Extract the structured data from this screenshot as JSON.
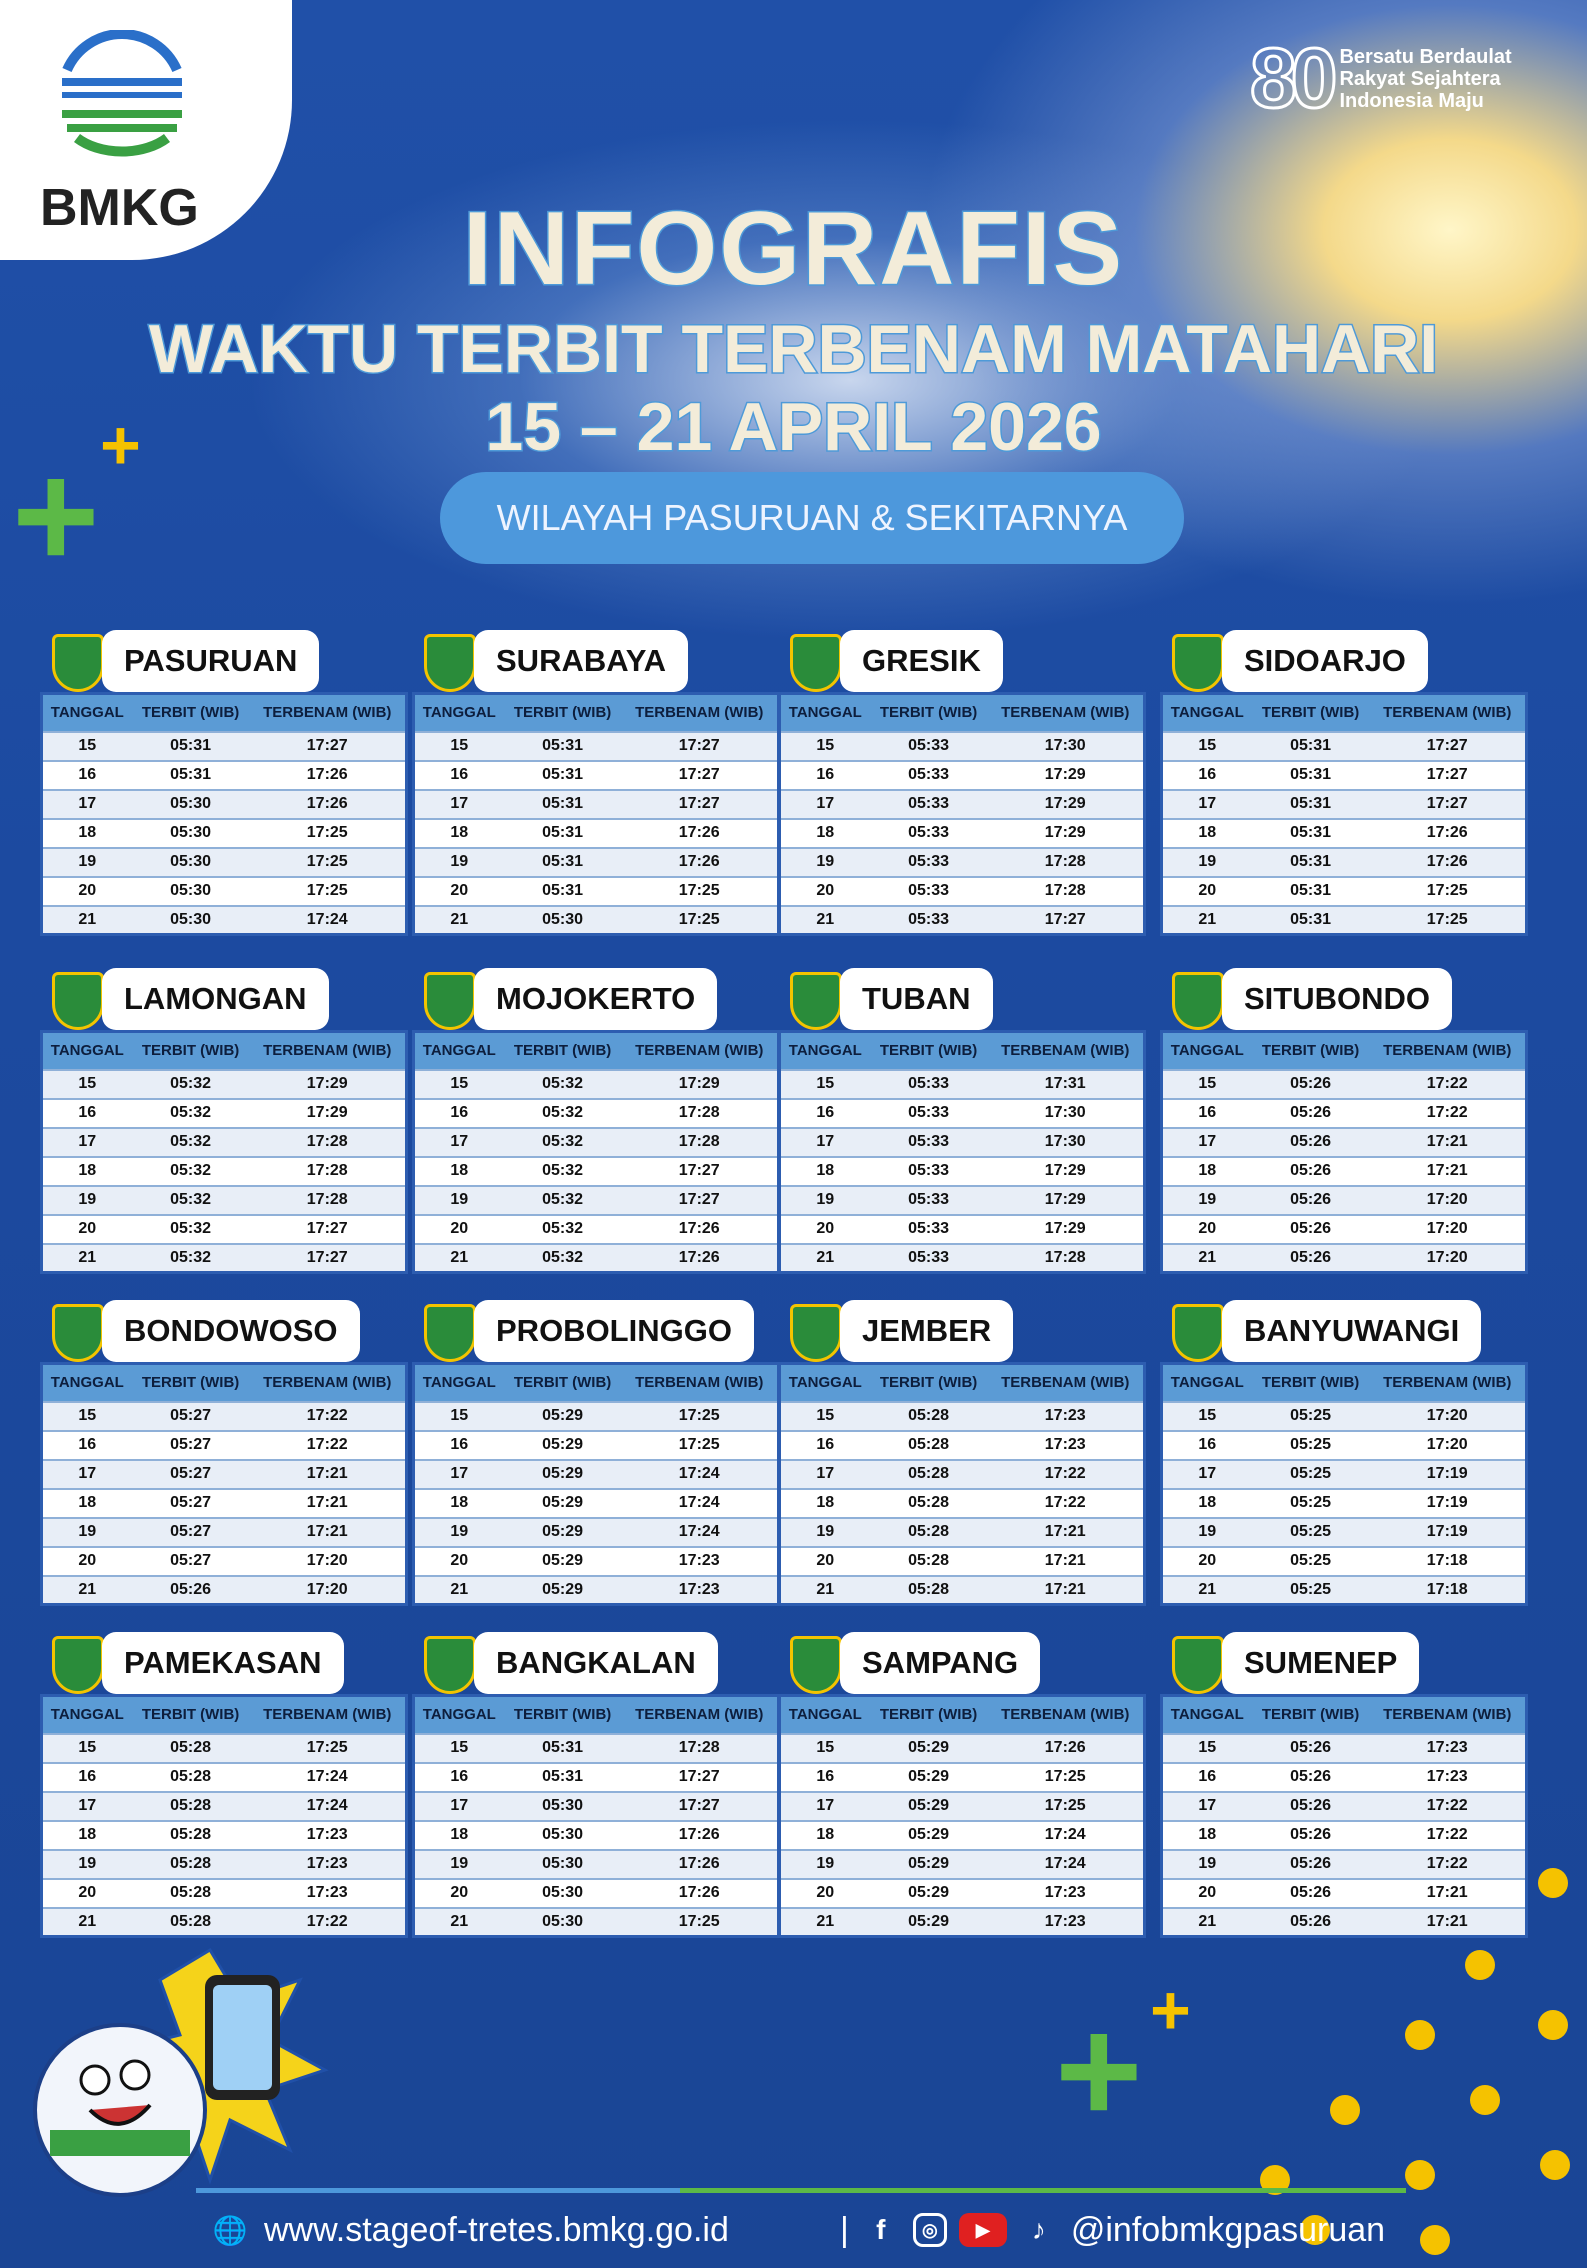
{
  "logo": {
    "text": "BMKG"
  },
  "anniversary": {
    "number": "80",
    "tagline": "Bersatu Berdaulat Rakyat Sejahtera Indonesia Maju"
  },
  "header": {
    "title": "INFOGRAFIS",
    "subtitle": "WAKTU TERBIT TERBENAM MATAHARI",
    "date_range": "15 – 21 APRIL 2026",
    "region": "WILAYAH PASURUAN & SEKITARNYA"
  },
  "columns": [
    "TANGGAL",
    "TERBIT (WIB)",
    "TERBENAM (WIB)"
  ],
  "regions": [
    {
      "name": "PASURUAN",
      "rows": [
        [
          "15",
          "05:31",
          "17:27"
        ],
        [
          "16",
          "05:31",
          "17:26"
        ],
        [
          "17",
          "05:30",
          "17:26"
        ],
        [
          "18",
          "05:30",
          "17:25"
        ],
        [
          "19",
          "05:30",
          "17:25"
        ],
        [
          "20",
          "05:30",
          "17:25"
        ],
        [
          "21",
          "05:30",
          "17:24"
        ]
      ]
    },
    {
      "name": "SURABAYA",
      "rows": [
        [
          "15",
          "05:31",
          "17:27"
        ],
        [
          "16",
          "05:31",
          "17:27"
        ],
        [
          "17",
          "05:31",
          "17:27"
        ],
        [
          "18",
          "05:31",
          "17:26"
        ],
        [
          "19",
          "05:31",
          "17:26"
        ],
        [
          "20",
          "05:31",
          "17:25"
        ],
        [
          "21",
          "05:30",
          "17:25"
        ]
      ]
    },
    {
      "name": "GRESIK",
      "rows": [
        [
          "15",
          "05:33",
          "17:30"
        ],
        [
          "16",
          "05:33",
          "17:29"
        ],
        [
          "17",
          "05:33",
          "17:29"
        ],
        [
          "18",
          "05:33",
          "17:29"
        ],
        [
          "19",
          "05:33",
          "17:28"
        ],
        [
          "20",
          "05:33",
          "17:28"
        ],
        [
          "21",
          "05:33",
          "17:27"
        ]
      ]
    },
    {
      "name": "SIDOARJO",
      "rows": [
        [
          "15",
          "05:31",
          "17:27"
        ],
        [
          "16",
          "05:31",
          "17:27"
        ],
        [
          "17",
          "05:31",
          "17:27"
        ],
        [
          "18",
          "05:31",
          "17:26"
        ],
        [
          "19",
          "05:31",
          "17:26"
        ],
        [
          "20",
          "05:31",
          "17:25"
        ],
        [
          "21",
          "05:31",
          "17:25"
        ]
      ]
    },
    {
      "name": "LAMONGAN",
      "rows": [
        [
          "15",
          "05:32",
          "17:29"
        ],
        [
          "16",
          "05:32",
          "17:29"
        ],
        [
          "17",
          "05:32",
          "17:28"
        ],
        [
          "18",
          "05:32",
          "17:28"
        ],
        [
          "19",
          "05:32",
          "17:28"
        ],
        [
          "20",
          "05:32",
          "17:27"
        ],
        [
          "21",
          "05:32",
          "17:27"
        ]
      ]
    },
    {
      "name": "MOJOKERTO",
      "rows": [
        [
          "15",
          "05:32",
          "17:29"
        ],
        [
          "16",
          "05:32",
          "17:28"
        ],
        [
          "17",
          "05:32",
          "17:28"
        ],
        [
          "18",
          "05:32",
          "17:27"
        ],
        [
          "19",
          "05:32",
          "17:27"
        ],
        [
          "20",
          "05:32",
          "17:26"
        ],
        [
          "21",
          "05:32",
          "17:26"
        ]
      ]
    },
    {
      "name": "TUBAN",
      "rows": [
        [
          "15",
          "05:33",
          "17:31"
        ],
        [
          "16",
          "05:33",
          "17:30"
        ],
        [
          "17",
          "05:33",
          "17:30"
        ],
        [
          "18",
          "05:33",
          "17:29"
        ],
        [
          "19",
          "05:33",
          "17:29"
        ],
        [
          "20",
          "05:33",
          "17:29"
        ],
        [
          "21",
          "05:33",
          "17:28"
        ]
      ]
    },
    {
      "name": "SITUBONDO",
      "rows": [
        [
          "15",
          "05:26",
          "17:22"
        ],
        [
          "16",
          "05:26",
          "17:22"
        ],
        [
          "17",
          "05:26",
          "17:21"
        ],
        [
          "18",
          "05:26",
          "17:21"
        ],
        [
          "19",
          "05:26",
          "17:20"
        ],
        [
          "20",
          "05:26",
          "17:20"
        ],
        [
          "21",
          "05:26",
          "17:20"
        ]
      ]
    },
    {
      "name": "BONDOWOSO",
      "rows": [
        [
          "15",
          "05:27",
          "17:22"
        ],
        [
          "16",
          "05:27",
          "17:22"
        ],
        [
          "17",
          "05:27",
          "17:21"
        ],
        [
          "18",
          "05:27",
          "17:21"
        ],
        [
          "19",
          "05:27",
          "17:21"
        ],
        [
          "20",
          "05:27",
          "17:20"
        ],
        [
          "21",
          "05:26",
          "17:20"
        ]
      ]
    },
    {
      "name": "PROBOLINGGO",
      "rows": [
        [
          "15",
          "05:29",
          "17:25"
        ],
        [
          "16",
          "05:29",
          "17:25"
        ],
        [
          "17",
          "05:29",
          "17:24"
        ],
        [
          "18",
          "05:29",
          "17:24"
        ],
        [
          "19",
          "05:29",
          "17:24"
        ],
        [
          "20",
          "05:29",
          "17:23"
        ],
        [
          "21",
          "05:29",
          "17:23"
        ]
      ]
    },
    {
      "name": "JEMBER",
      "rows": [
        [
          "15",
          "05:28",
          "17:23"
        ],
        [
          "16",
          "05:28",
          "17:23"
        ],
        [
          "17",
          "05:28",
          "17:22"
        ],
        [
          "18",
          "05:28",
          "17:22"
        ],
        [
          "19",
          "05:28",
          "17:21"
        ],
        [
          "20",
          "05:28",
          "17:21"
        ],
        [
          "21",
          "05:28",
          "17:21"
        ]
      ]
    },
    {
      "name": "BANYUWANGI",
      "rows": [
        [
          "15",
          "05:25",
          "17:20"
        ],
        [
          "16",
          "05:25",
          "17:20"
        ],
        [
          "17",
          "05:25",
          "17:19"
        ],
        [
          "18",
          "05:25",
          "17:19"
        ],
        [
          "19",
          "05:25",
          "17:19"
        ],
        [
          "20",
          "05:25",
          "17:18"
        ],
        [
          "21",
          "05:25",
          "17:18"
        ]
      ]
    },
    {
      "name": "PAMEKASAN",
      "rows": [
        [
          "15",
          "05:28",
          "17:25"
        ],
        [
          "16",
          "05:28",
          "17:24"
        ],
        [
          "17",
          "05:28",
          "17:24"
        ],
        [
          "18",
          "05:28",
          "17:23"
        ],
        [
          "19",
          "05:28",
          "17:23"
        ],
        [
          "20",
          "05:28",
          "17:23"
        ],
        [
          "21",
          "05:28",
          "17:22"
        ]
      ]
    },
    {
      "name": "BANGKALAN",
      "rows": [
        [
          "15",
          "05:31",
          "17:28"
        ],
        [
          "16",
          "05:31",
          "17:27"
        ],
        [
          "17",
          "05:30",
          "17:27"
        ],
        [
          "18",
          "05:30",
          "17:26"
        ],
        [
          "19",
          "05:30",
          "17:26"
        ],
        [
          "20",
          "05:30",
          "17:26"
        ],
        [
          "21",
          "05:30",
          "17:25"
        ]
      ]
    },
    {
      "name": "SAMPANG",
      "rows": [
        [
          "15",
          "05:29",
          "17:26"
        ],
        [
          "16",
          "05:29",
          "17:25"
        ],
        [
          "17",
          "05:29",
          "17:25"
        ],
        [
          "18",
          "05:29",
          "17:24"
        ],
        [
          "19",
          "05:29",
          "17:24"
        ],
        [
          "20",
          "05:29",
          "17:23"
        ],
        [
          "21",
          "05:29",
          "17:23"
        ]
      ]
    },
    {
      "name": "SUMENEP",
      "rows": [
        [
          "15",
          "05:26",
          "17:23"
        ],
        [
          "16",
          "05:26",
          "17:23"
        ],
        [
          "17",
          "05:26",
          "17:22"
        ],
        [
          "18",
          "05:26",
          "17:22"
        ],
        [
          "19",
          "05:26",
          "17:22"
        ],
        [
          "20",
          "05:26",
          "17:21"
        ],
        [
          "21",
          "05:26",
          "17:21"
        ]
      ]
    }
  ],
  "footer": {
    "website": "www.stageof-tretes.bmkg.go.id",
    "separator": "|",
    "handle": "@infobmkgpasuruan"
  },
  "colors": {
    "background": "#1c4aa0",
    "header_row": "#5b9bd5",
    "accent_green": "#5cb947",
    "accent_yellow": "#f5c200",
    "pill": "#4d98dc"
  }
}
